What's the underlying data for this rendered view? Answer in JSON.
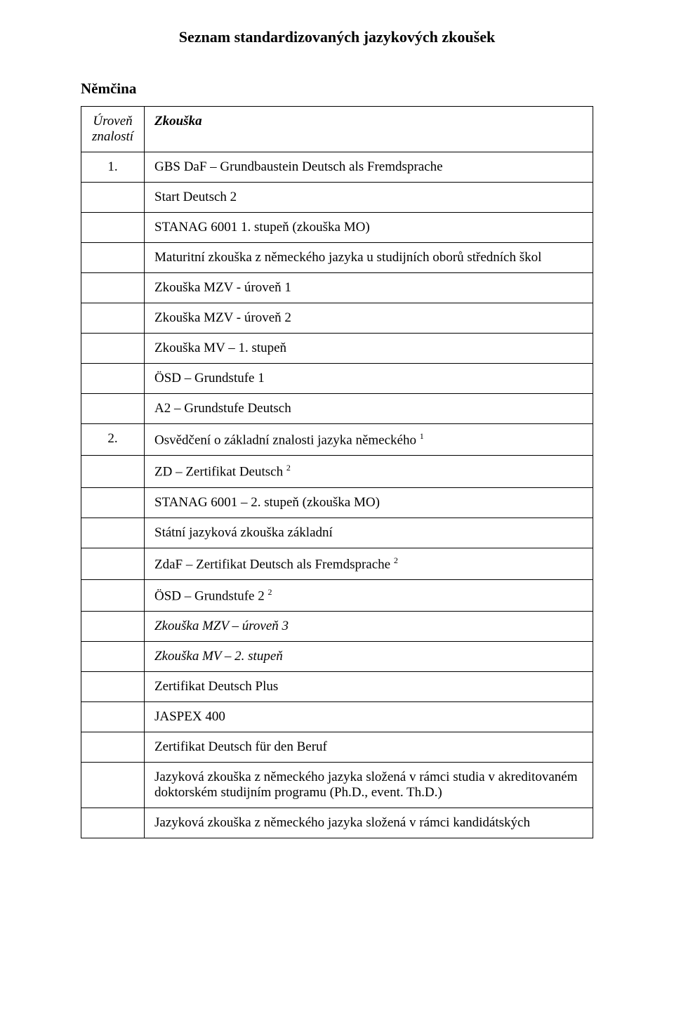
{
  "title": "Seznam standardizovaných jazykových zkoušek",
  "languageHeading": "Němčina",
  "header": {
    "levelLabel": "Úroveň znalostí",
    "examLabel": "Zkouška"
  },
  "rows": [
    {
      "level": "1.",
      "exam": "GBS DaF – Grundbaustein Deutsch als Fremdsprache"
    },
    {
      "level": "",
      "exam": "Start Deutsch 2"
    },
    {
      "level": "",
      "exam": "STANAG 6001  1. stupeň (zkouška MO)"
    },
    {
      "level": "",
      "exam": "Maturitní zkouška z německého jazyka u studijních oborů středních škol"
    },
    {
      "level": "",
      "exam": "Zkouška MZV -  úroveň  1"
    },
    {
      "level": "",
      "exam": "Zkouška MZV -  úroveň  2"
    },
    {
      "level": "",
      "exam": "Zkouška MV – 1. stupeň"
    },
    {
      "level": "",
      "exam": "ÖSD – Grundstufe 1"
    },
    {
      "level": "",
      "exam": "A2 – Grundstufe Deutsch"
    },
    {
      "level": "2.",
      "exam": "Osvědčení o základní znalosti jazyka německého ",
      "sup": "1"
    },
    {
      "level": "",
      "exam": "ZD – Zertifikat Deutsch ",
      "sup": "2"
    },
    {
      "level": "",
      "exam": "STANAG 6001 – 2. stupeň  (zkouška MO)"
    },
    {
      "level": "",
      "exam": "Státní jazyková zkouška základní"
    },
    {
      "level": "",
      "exam": "ZdaF – Zertifikat Deutsch als Fremdsprache ",
      "sup": "2"
    },
    {
      "level": "",
      "exam": "ÖSD – Grundstufe 2 ",
      "sup": "2"
    },
    {
      "level": "",
      "exam": "Zkouška MZV – úroveň 3",
      "italic": true
    },
    {
      "level": "",
      "exam": "Zkouška MV – 2. stupeň",
      "italic": true
    },
    {
      "level": "",
      "exam": "Zertifikat Deutsch Plus"
    },
    {
      "level": "",
      "exam": "JASPEX 400"
    },
    {
      "level": "",
      "exam": "Zertifikat Deutsch für den Beruf"
    },
    {
      "level": "",
      "exam": "Jazyková zkouška z německého jazyka složená v rámci studia v akreditovaném doktorském studijním programu (Ph.D., event. Th.D.)"
    },
    {
      "level": "",
      "exam": "Jazyková zkouška z německého jazyka složená v rámci kandidátských"
    }
  ]
}
